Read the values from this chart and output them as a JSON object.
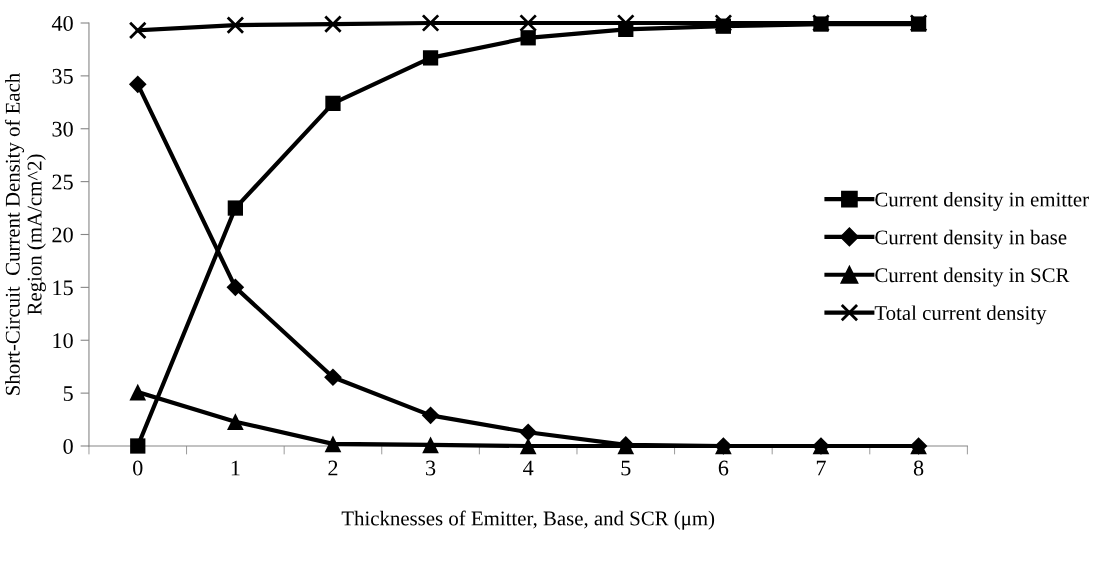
{
  "chart_data": {
    "type": "line",
    "xlabel": "Thicknesses of Emitter, Base, and SCR (μm)",
    "ylabel": "Short-Circuit  Current Density of Each\nRegion (mA/cm^2)",
    "categories": [
      "0",
      "1",
      "2",
      "3",
      "4",
      "5",
      "6",
      "7",
      "8"
    ],
    "series": [
      {
        "name": "Current density in emitter",
        "color": "#000000",
        "marker": "square",
        "values": [
          0,
          22.5,
          32.4,
          36.7,
          38.6,
          39.4,
          39.7,
          39.9,
          39.9
        ]
      },
      {
        "name": "Current density in base",
        "color": "#000000",
        "marker": "diamond",
        "values": [
          34.2,
          15.0,
          6.5,
          2.9,
          1.3,
          0.1,
          0,
          0,
          0
        ]
      },
      {
        "name": "Current density in SCR",
        "color": "#000000",
        "marker": "triangle",
        "values": [
          5.1,
          2.3,
          0.2,
          0.1,
          0,
          0,
          0,
          0,
          0
        ]
      },
      {
        "name": "Total current density",
        "color": "#000000",
        "marker": "cross",
        "values": [
          39.3,
          39.8,
          39.9,
          40,
          40,
          40,
          40,
          40,
          40
        ]
      }
    ],
    "ylim": [
      0,
      40
    ],
    "yticks": [
      0,
      5,
      10,
      15,
      20,
      25,
      30,
      35,
      40
    ],
    "grid": false,
    "legend": "right",
    "line_style": "solid"
  }
}
